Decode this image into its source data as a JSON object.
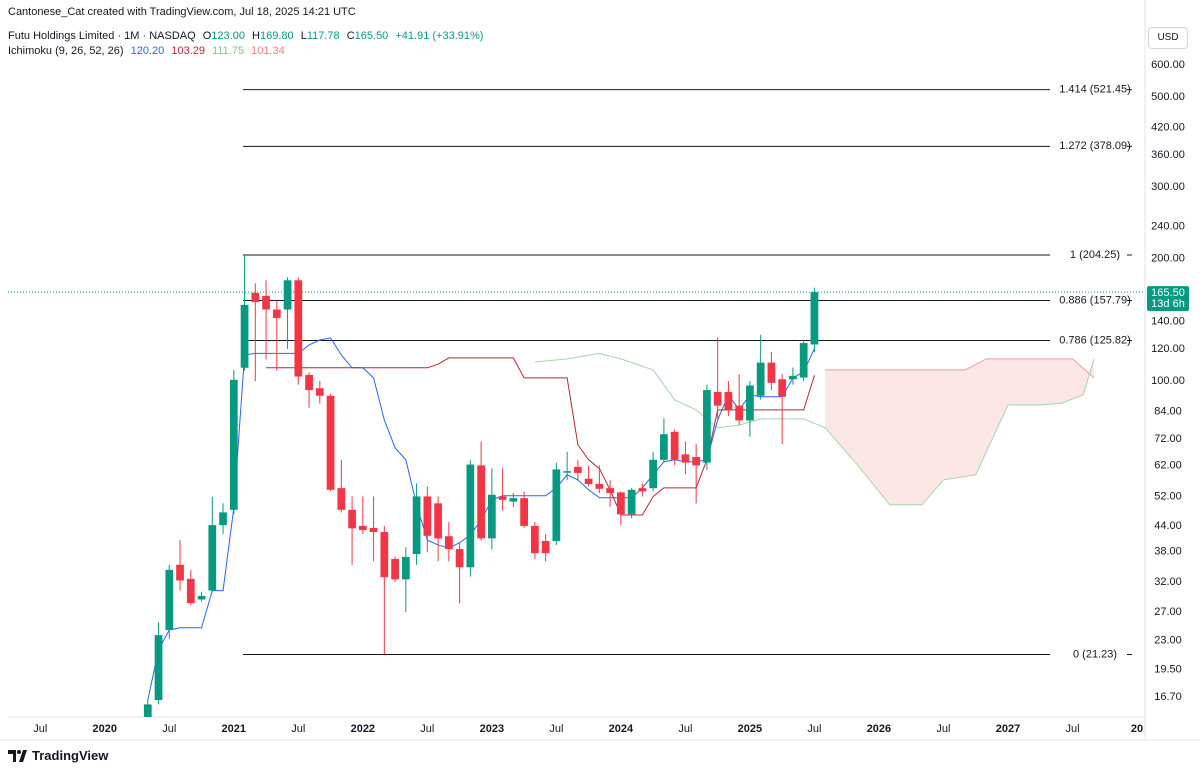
{
  "chart_data": {
    "type": "candlestick",
    "attribution": "Cantonese_Cat created with TradingView.com, Jul 18, 2025 14:21 UTC",
    "legend": {
      "symbol": "Futu Holdings Limited · 1M · NASDAQ",
      "ohlc": [
        {
          "key": "O",
          "value": "123.00"
        },
        {
          "key": "H",
          "value": "169.80"
        },
        {
          "key": "L",
          "value": "117.78"
        },
        {
          "key": "C",
          "value": "165.50"
        }
      ],
      "change": "+41.91 (+33.91%)",
      "color": "#089981"
    },
    "indicator": {
      "name": "Ichimoku (9, 26, 52, 26)",
      "values": [
        {
          "text": "120.20",
          "color": "#2962ff"
        },
        {
          "text": "103.29",
          "color": "#b22833"
        },
        {
          "text": "111.75",
          "color": "#81c784"
        },
        {
          "text": "101.34",
          "color": "#f77c80"
        }
      ]
    },
    "currency": "USD",
    "footer": "TradingView",
    "log_scale": true,
    "grid": false,
    "up_color": "#089981",
    "down_color": "#f23645",
    "xlim": [
      "2019-04",
      "2028-01"
    ],
    "xticks": [
      {
        "value": "2019-07",
        "label": "Jul"
      },
      {
        "value": "2020-01",
        "label": "2020"
      },
      {
        "value": "2020-07",
        "label": "Jul"
      },
      {
        "value": "2021-01",
        "label": "2021"
      },
      {
        "value": "2021-07",
        "label": "Jul"
      },
      {
        "value": "2022-01",
        "label": "2022"
      },
      {
        "value": "2022-07",
        "label": "Jul"
      },
      {
        "value": "2023-01",
        "label": "2023"
      },
      {
        "value": "2023-07",
        "label": "Jul"
      },
      {
        "value": "2024-01",
        "label": "2024"
      },
      {
        "value": "2024-07",
        "label": "Jul"
      },
      {
        "value": "2025-01",
        "label": "2025"
      },
      {
        "value": "2025-07",
        "label": "Jul"
      },
      {
        "value": "2026-01",
        "label": "2026"
      },
      {
        "value": "2026-07",
        "label": "Jul"
      },
      {
        "value": "2027-01",
        "label": "2027"
      },
      {
        "value": "2027-07",
        "label": "Jul"
      },
      {
        "value": "2028-01",
        "label": "20"
      }
    ],
    "ylim": [
      14.9,
      731
    ],
    "yticks": [
      {
        "value": 600,
        "label": "600.00"
      },
      {
        "value": 500,
        "label": "500.00"
      },
      {
        "value": 420,
        "label": "420.00"
      },
      {
        "value": 360,
        "label": "360.00"
      },
      {
        "value": 300,
        "label": "300.00"
      },
      {
        "value": 240,
        "label": "240.00"
      },
      {
        "value": 200,
        "label": "200.00"
      },
      {
        "value": 140,
        "label": "140.00"
      },
      {
        "value": 120,
        "label": "120.00"
      },
      {
        "value": 100,
        "label": "100.00"
      },
      {
        "value": 84,
        "label": "84.00"
      },
      {
        "value": 72,
        "label": "72.00"
      },
      {
        "value": 62,
        "label": "62.00"
      },
      {
        "value": 52,
        "label": "52.00"
      },
      {
        "value": 44,
        "label": "44.00"
      },
      {
        "value": 38,
        "label": "38.00"
      },
      {
        "value": 32,
        "label": "32.00"
      },
      {
        "value": 27,
        "label": "27.00"
      },
      {
        "value": 23,
        "label": "23.00"
      },
      {
        "value": 19.5,
        "label": "19.50"
      },
      {
        "value": 16.7,
        "label": "16.70"
      }
    ],
    "x": [
      "2020-05",
      "2020-06",
      "2020-07",
      "2020-08",
      "2020-09",
      "2020-10",
      "2020-11",
      "2020-12",
      "2021-01",
      "2021-02",
      "2021-03",
      "2021-04",
      "2021-05",
      "2021-06",
      "2021-07",
      "2021-08",
      "2021-09",
      "2021-10",
      "2021-11",
      "2021-12",
      "2022-01",
      "2022-02",
      "2022-03",
      "2022-04",
      "2022-05",
      "2022-06",
      "2022-07",
      "2022-08",
      "2022-09",
      "2022-10",
      "2022-11",
      "2022-12",
      "2023-01",
      "2023-02",
      "2023-03",
      "2023-04",
      "2023-05",
      "2023-06",
      "2023-07",
      "2023-08",
      "2023-09",
      "2023-10",
      "2023-11",
      "2023-12",
      "2024-01",
      "2024-02",
      "2024-03",
      "2024-04",
      "2024-05",
      "2024-06",
      "2024-07",
      "2024-08",
      "2024-09",
      "2024-10",
      "2024-11",
      "2024-12",
      "2025-01",
      "2025-02",
      "2025-03",
      "2025-04",
      "2025-05",
      "2025-06",
      "2025-07"
    ],
    "open": [
      14.5,
      16.4,
      24.4,
      35.3,
      32.6,
      29.0,
      30.5,
      44.2,
      48.2,
      107.8,
      164.8,
      162.0,
      150.0,
      150.0,
      177.0,
      103.5,
      96.0,
      92.0,
      54.5,
      48.2,
      44.0,
      43.5,
      42.5,
      36.5,
      32.5,
      37.5,
      52.0,
      50.0,
      41.5,
      38.6,
      34.8,
      62.0,
      41.0,
      52.0,
      50.5,
      51.5,
      44.0,
      40.4,
      40.4,
      59.5,
      61.5,
      57.5,
      55.8,
      54.5,
      53.2,
      47.0,
      54.5,
      54.5,
      64.0,
      75.0,
      66.0,
      65.0,
      63.0,
      94.0,
      94.0,
      87.0,
      80.0,
      92.0,
      111.0,
      101.0,
      101.0,
      102.0,
      123.0
    ],
    "high": [
      16.5,
      25.5,
      35.3,
      40.6,
      34.3,
      30.3,
      51.9,
      50.0,
      106.5,
      204.25,
      174.0,
      177.0,
      158.0,
      180.0,
      180.0,
      105.0,
      100.0,
      93.0,
      64.0,
      52.0,
      52.0,
      52.0,
      44.0,
      37.0,
      39.0,
      56.0,
      55.0,
      52.0,
      45.0,
      40.0,
      64.0,
      71.0,
      61.0,
      61.0,
      53.0,
      53.5,
      45.0,
      42.0,
      63.0,
      67.0,
      64.0,
      62.0,
      62.0,
      57.0,
      53.5,
      54.5,
      56.0,
      67.0,
      81.0,
      76.0,
      71.0,
      70.0,
      98.0,
      128.0,
      100.0,
      104.0,
      100.0,
      130.0,
      118.0,
      104.0,
      108.0,
      126.0,
      169.8
    ],
    "low": [
      14.0,
      16.0,
      23.2,
      30.5,
      28.1,
      28.6,
      30.2,
      42.0,
      47.0,
      106.0,
      100.0,
      113.0,
      106.0,
      120.0,
      98.0,
      86.0,
      88.0,
      53.5,
      47.5,
      35.3,
      42.0,
      36.0,
      21.23,
      32.0,
      27.0,
      35.3,
      37.9,
      36.0,
      36.0,
      28.4,
      33.0,
      40.5,
      38.5,
      48.0,
      49.0,
      43.5,
      36.5,
      36.0,
      39.5,
      57.0,
      57.0,
      55.0,
      53.0,
      49.0,
      44.2,
      46.0,
      52.0,
      53.5,
      63.0,
      62.0,
      59.0,
      50.0,
      60.5,
      80.0,
      82.0,
      78.0,
      73.0,
      90.0,
      95.0,
      70.0,
      98.0,
      100.0,
      117.78
    ],
    "close": [
      16.0,
      23.7,
      34.3,
      32.3,
      28.4,
      29.6,
      44.2,
      47.5,
      100.7,
      154.0,
      156.4,
      150.0,
      143.0,
      177.0,
      102.6,
      95.0,
      92.0,
      54.0,
      48.2,
      43.4,
      43.0,
      42.5,
      32.9,
      32.5,
      36.9,
      52.0,
      41.6,
      41.0,
      38.6,
      34.8,
      62.3,
      41.0,
      52.5,
      51.0,
      51.5,
      44.0,
      37.7,
      37.7,
      60.6,
      60.0,
      59.4,
      55.8,
      54.3,
      53.0,
      47.0,
      54.0,
      53.5,
      64.0,
      74.0,
      64.0,
      63.0,
      62.0,
      95.0,
      87.0,
      85.0,
      80.0,
      97.5,
      111.0,
      99.0,
      91.5,
      103.0,
      124.0,
      165.5
    ],
    "lines": [
      {
        "color": "#2962ff",
        "values": [
          16.4,
          21.8,
          24.4,
          24.7,
          24.7,
          24.7,
          30.5,
          30.5,
          48.7,
          115.9,
          117,
          117,
          117,
          117,
          117,
          122.7,
          126.2,
          127.7,
          115.9,
          107.8,
          107.8,
          101.8,
          80.2,
          68.5,
          64,
          49.6,
          40.6,
          39.5,
          38.8,
          40,
          41.8,
          45.5,
          51,
          52.2,
          52.2,
          52.2,
          52.2,
          52.2,
          54.6,
          58.8,
          57.1,
          54,
          51.6,
          51.6,
          51.6,
          51.6,
          54.6,
          58.8,
          63.3,
          64,
          63.3,
          63.3,
          64,
          80.2,
          92.5,
          84.9,
          92.5,
          91.5,
          91.5,
          91.5,
          101.8,
          105.3,
          120.2
        ]
      },
      {
        "color": "#b22833",
        "values": [
          null,
          null,
          null,
          null,
          null,
          null,
          null,
          null,
          null,
          null,
          null,
          107.8,
          107.8,
          107.8,
          107.8,
          107.8,
          107.8,
          107.8,
          107.8,
          107.8,
          107.8,
          107.8,
          107.8,
          107.8,
          107.8,
          107.8,
          107.8,
          110,
          114,
          114,
          114,
          114,
          114,
          114,
          114,
          101.8,
          101.8,
          101.8,
          101.8,
          101.8,
          69.7,
          64,
          60.9,
          54,
          46.8,
          46.8,
          46.8,
          52,
          54.6,
          54.6,
          54.6,
          54.6,
          64,
          84.9,
          84.9,
          84.9,
          84.9,
          84.9,
          84.9,
          84.9,
          84.9,
          84.9,
          103.29
        ]
      }
    ],
    "cloud": {
      "fill": "#fde7e6",
      "span_a": {
        "color": "#a5d6a7",
        "x": [
          "2023-05",
          "2023-08",
          "2023-11",
          "2024-01",
          "2024-04",
          "2024-06",
          "2024-08",
          "2024-10",
          "2024-12",
          "2025-02",
          "2025-04",
          "2025-06",
          "2025-08",
          "2025-11",
          "2026-02",
          "2026-05",
          "2026-07",
          "2026-10",
          "2027-01",
          "2027-04",
          "2027-06",
          "2027-08",
          "2027-09"
        ],
        "values": [
          111.4,
          113.4,
          117,
          113.4,
          106.5,
          89.9,
          84.9,
          76.7,
          77.9,
          80.7,
          80.7,
          80.7,
          76.7,
          62.2,
          49.6,
          49.6,
          57.1,
          58.8,
          87.3,
          87.3,
          88.2,
          92.5,
          113.4
        ]
      },
      "span_b": {
        "color": "#ef9a9a",
        "x": [
          "2025-08",
          "2026-09",
          "2026-11",
          "2027-07",
          "2027-09"
        ],
        "values": [
          106.5,
          106.5,
          113.4,
          113.4,
          101.8
        ]
      }
    },
    "levels": [
      {
        "value": 521.45,
        "label": "1.414 (521.45)"
      },
      {
        "value": 378.09,
        "label": "1.272 (378.09)"
      },
      {
        "value": 204.25,
        "label": "1 (204.25)"
      },
      {
        "value": 157.79,
        "label": "0.886 (157.79)"
      },
      {
        "value": 125.82,
        "label": "0.786 (125.82)"
      },
      {
        "value": 21.23,
        "label": "0 (21.23)"
      }
    ],
    "level_color": "#131722",
    "last_price": {
      "value": 165.5,
      "label": "165.50"
    },
    "countdown": "13d 6h"
  }
}
